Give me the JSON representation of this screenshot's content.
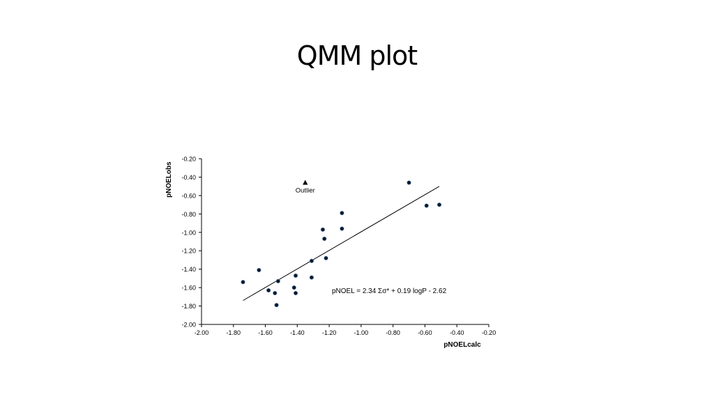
{
  "slide": {
    "title": "QMM plot"
  },
  "chart_data": {
    "type": "scatter",
    "xlabel": "pNOELcalc",
    "ylabel": "pNOELobs",
    "xlim": [
      -2.0,
      -0.2
    ],
    "ylim": [
      -2.0,
      -0.2
    ],
    "x_ticks": [
      -2.0,
      -1.8,
      -1.6,
      -1.4,
      -1.2,
      -1.0,
      -0.8,
      -0.6,
      -0.4,
      -0.2
    ],
    "y_ticks": [
      -2.0,
      -1.8,
      -1.6,
      -1.4,
      -1.2,
      -1.0,
      -0.8,
      -0.6,
      -0.4,
      -0.2
    ],
    "x_tick_labels": [
      "-2.00",
      "-1.80",
      "-1.60",
      "-1.40",
      "-1.20",
      "-1.00",
      "-0.80",
      "-0.60",
      "-0.40",
      "-0.20"
    ],
    "y_tick_labels": [
      "-2.00",
      "-1.80",
      "-1.60",
      "-1.40",
      "-1.20",
      "-1.00",
      "-0.80",
      "-0.60",
      "-0.40",
      "-0.20"
    ],
    "grid": false,
    "points": [
      {
        "x": -1.74,
        "y": -1.54
      },
      {
        "x": -1.64,
        "y": -1.41
      },
      {
        "x": -1.58,
        "y": -1.63
      },
      {
        "x": -1.54,
        "y": -1.66
      },
      {
        "x": -1.53,
        "y": -1.79
      },
      {
        "x": -1.52,
        "y": -1.53
      },
      {
        "x": -1.42,
        "y": -1.6
      },
      {
        "x": -1.41,
        "y": -1.47
      },
      {
        "x": -1.41,
        "y": -1.66
      },
      {
        "x": -1.31,
        "y": -1.31
      },
      {
        "x": -1.31,
        "y": -1.49
      },
      {
        "x": -1.24,
        "y": -0.97
      },
      {
        "x": -1.23,
        "y": -1.07
      },
      {
        "x": -1.22,
        "y": -1.28
      },
      {
        "x": -1.12,
        "y": -0.79
      },
      {
        "x": -1.12,
        "y": -0.96
      },
      {
        "x": -0.7,
        "y": -0.46
      },
      {
        "x": -0.59,
        "y": -0.71
      },
      {
        "x": -0.51,
        "y": -0.7
      }
    ],
    "outlier": {
      "x": -1.35,
      "y": -0.46,
      "label": "Outlier"
    },
    "fit_line": {
      "x": [
        -1.74,
        -0.51
      ],
      "y": [
        -1.74,
        -0.5
      ]
    },
    "annotation": "pNOEL = 2.34 Σσ* + 0.19 logP - 2.62",
    "colors": {
      "point": "#0a1a2e",
      "line": "#000000",
      "axis": "#000000"
    }
  }
}
